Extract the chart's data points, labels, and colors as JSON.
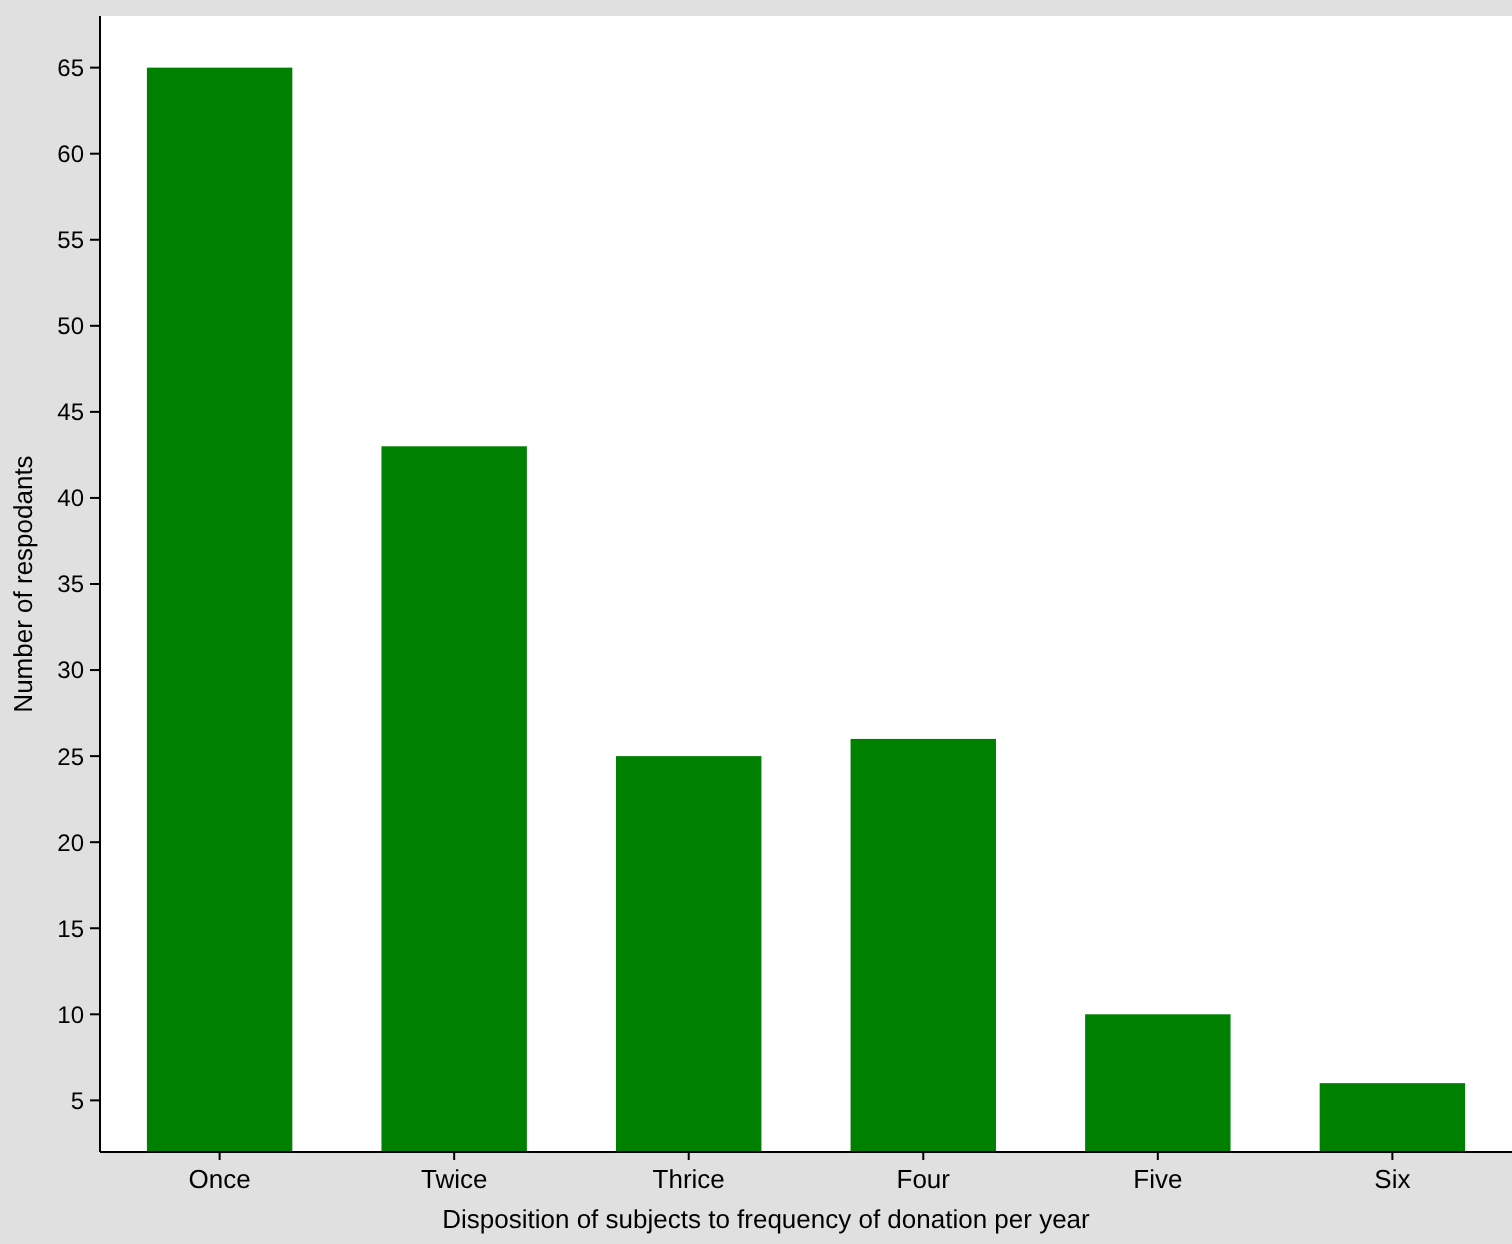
{
  "chart_data": {
    "type": "bar",
    "xlabel": "Disposition of subjects to frequency of donation per year",
    "ylabel": "Number of respodants",
    "categories": [
      "Once",
      "Twice",
      "Thrice",
      "Four",
      "Five",
      "Six"
    ],
    "values": [
      65,
      43,
      25,
      26,
      10,
      6
    ],
    "color": "#008000",
    "ylim": [
      2,
      68
    ],
    "yticks": [
      5,
      10,
      15,
      20,
      25,
      30,
      35,
      40,
      45,
      50,
      55,
      60,
      65
    ],
    "grid": false
  }
}
